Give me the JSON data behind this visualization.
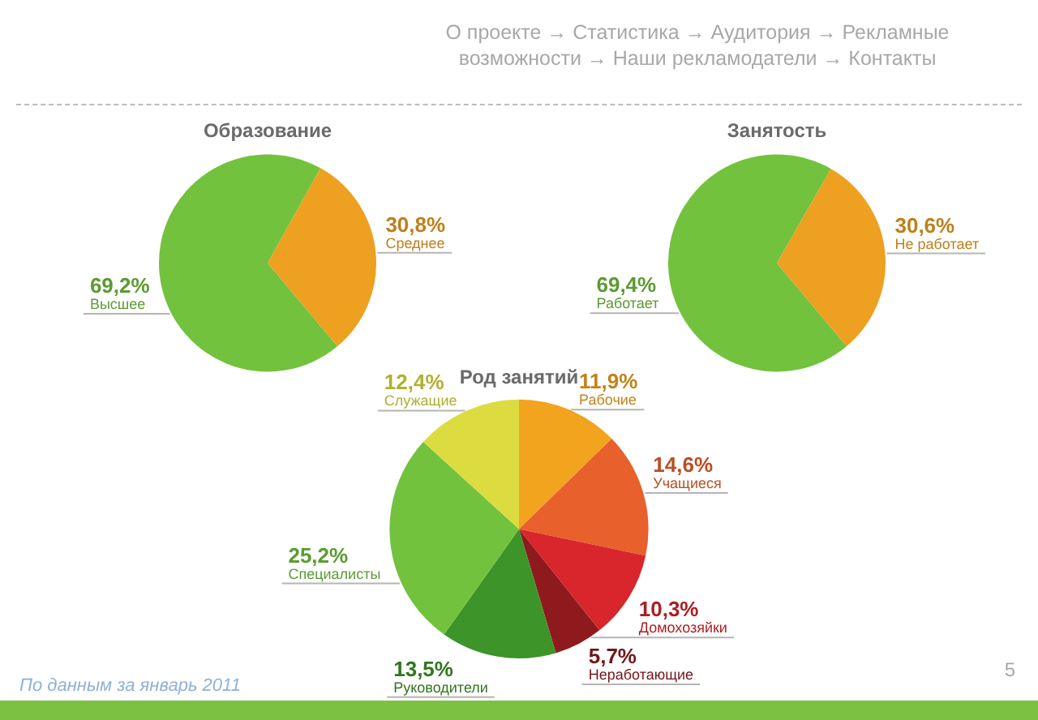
{
  "chart_data": [
    {
      "type": "pie",
      "title": "Образование",
      "categories": [
        "Высшее",
        "Среднее"
      ],
      "values": [
        69.2,
        30.8
      ],
      "colors": [
        "#72c23e",
        "#eea020"
      ],
      "value_labels": [
        "69,2%",
        "30,8%"
      ],
      "annotations": [
        "О проекте → Статистика → Аудитория → Рекламные возможности → Наши рекламодатели → Контакты",
        "По данным за январь 2011",
        "5"
      ]
    },
    {
      "type": "pie",
      "title": "Занятость",
      "categories": [
        "Работает",
        "Не работает"
      ],
      "values": [
        69.4,
        30.6
      ],
      "colors": [
        "#72c23e",
        "#eea020"
      ],
      "value_labels": [
        "69,4%",
        "30,6%"
      ]
    },
    {
      "type": "pie",
      "title": "Род занятий",
      "categories": [
        "Рабочие",
        "Учащиеся",
        "Домохозяйки",
        "Неработающие",
        "Руководители",
        "Специалисты",
        "Служащие"
      ],
      "values": [
        11.9,
        14.6,
        10.3,
        5.7,
        13.5,
        25.2,
        12.4
      ],
      "colors": [
        "#f2a41f",
        "#e8602c",
        "#d8262c",
        "#8e1a1e",
        "#3d9428",
        "#72c23e",
        "#dcdc40"
      ],
      "value_labels": [
        "11,9%",
        "14,6%",
        "10,3%",
        "5,7%",
        "13,5%",
        "25,2%",
        "12,4%"
      ]
    }
  ]
}
